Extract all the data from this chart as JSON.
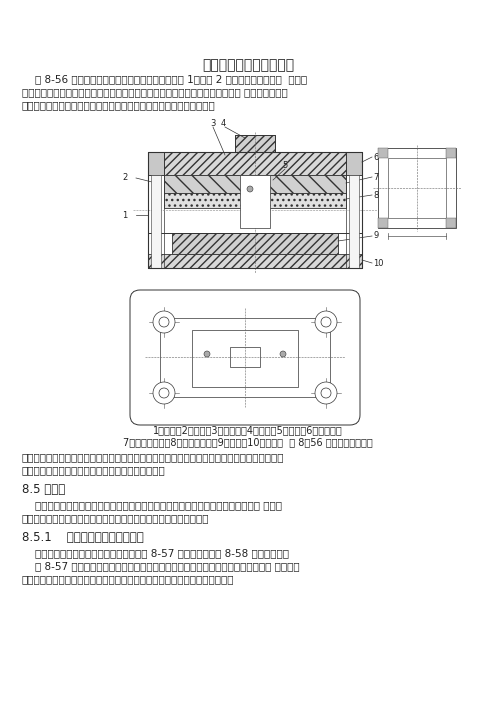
{
  "title": "案例四导柱式简单落料模",
  "bg_color": "#ffffff",
  "para1": "    图 8-56 为导柱式简单落料模。上、下模利用导柱 1、导套 2 的滑动配合导向。虽  然采用",
  "para1b": "导柱、导套导向会加大模具轮廓尺寸，使模具笨重，增加模具成本；但导柱导套 系圆柱形结构，",
  "para1c": "制造不复杂，容易达到高的精度，且可进行热处理，使导向面具有高的",
  "para2": "硬度，还可制成标准件。所以，用导柱导套导向比导板可靠，导向精度高，使用寿命长，更换安",
  "para2b": "装方便，故在大批量生产中广泛采用导柱式冲裁模。",
  "section1": "8.5 复合模",
  "para3": "    复合模能在压力机一次行程内，完成落料、冲孔及拉深等数道工序，所冲压的工件 精度较",
  "para3b": "高，不受送料误差影响，内外形相对位置重复性好，表面较为平直。",
  "section2": "8.5.1    复合模正装和倒装的比较",
  "para4": "    常见的复合模结构有正装和倒装两种。图 8-57 为正装结构，图 8-58 为倒装结构。",
  "para4b": "    图 8-57 为落料拉深复合模。处在上模部分的工作零件落料凸模也是拉深凹模。工 作零件还",
  "para4c": "有落料凹模和拉深凸模。工作时，条料送进，由带导料板的固定卸料板导向。",
  "caption1": "1－导柱；2－导套；3－档料销；4－模柄；5－凸模；6－上模板；",
  "caption2": "7－凸模固定板；8－刚性卸料板；9－凹模；10－下模板  图 8－56 导柱式简单落料模",
  "font_size_body": 7.5,
  "font_size_title": 10,
  "font_size_caption": 7.0,
  "font_size_section": 8.5
}
